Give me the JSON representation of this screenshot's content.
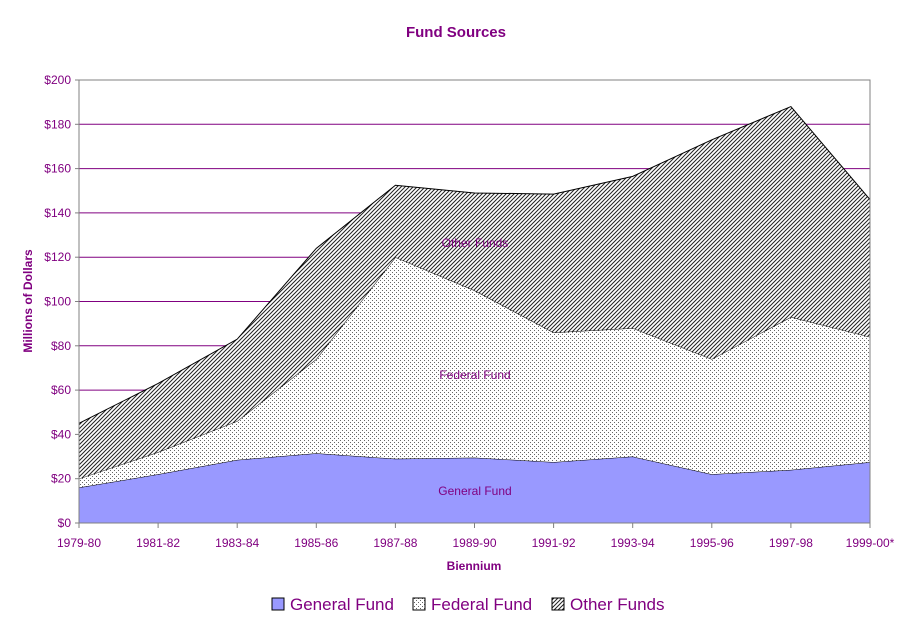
{
  "chart_data": {
    "type": "area",
    "stacked": true,
    "title": "Fund Sources",
    "xlabel": "Biennium",
    "ylabel": "Millions of Dollars",
    "ylim": [
      0,
      200
    ],
    "ytick_step": 20,
    "ytick_format": "$",
    "grid": "horizontal",
    "legend_position": "bottom",
    "categories": [
      "1979-80",
      "1981-82",
      "1983-84",
      "1985-86",
      "1987-88",
      "1989-90",
      "1991-92",
      "1993-94",
      "1995-96",
      "1997-98",
      "1999-00*"
    ],
    "series": [
      {
        "name": "General Fund",
        "values": [
          16,
          22,
          28.5,
          31.5,
          29,
          29.5,
          27.5,
          30,
          22,
          24,
          27.5
        ],
        "color": "#9999ff",
        "pattern": "solid"
      },
      {
        "name": "Federal Fund",
        "values": [
          4,
          10,
          17.5,
          42.5,
          91,
          75.5,
          58.5,
          58,
          52,
          69,
          56.5
        ],
        "color": "#ffffff",
        "pattern": "dots"
      },
      {
        "name": "Other Funds",
        "values": [
          25,
          31,
          37,
          50,
          32.5,
          44,
          62.5,
          68.5,
          99,
          95,
          62
        ],
        "color": "#ffffff",
        "pattern": "diagonal-hatch"
      }
    ],
    "annotations": [
      "Other Funds",
      "Federal Fund",
      "General Fund"
    ]
  }
}
